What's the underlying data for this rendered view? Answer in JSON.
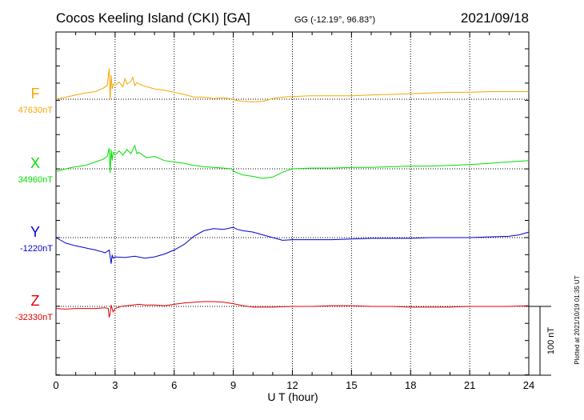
{
  "header": {
    "title": "Cocos Keeling Island (CKI)  [GA]",
    "coords": "GG (-12.19°,  96.83°)",
    "date": "2021/09/18"
  },
  "side_note": "Plotted at 2021/10/19 01:35 UT",
  "scale_bar": {
    "label": "100 nT",
    "value_nT": 100
  },
  "chart_data": {
    "type": "line",
    "xlabel": "U T (hour)",
    "xlim": [
      0,
      24
    ],
    "xticks": [
      0,
      3,
      6,
      9,
      12,
      15,
      18,
      21,
      24
    ],
    "grid": true,
    "series": [
      {
        "name": "F",
        "baseline_label": "47630nT",
        "baseline_nT": 47630,
        "color": "#f5a800",
        "x": [
          0,
          0.5,
          1,
          1.5,
          2,
          2.4,
          2.6,
          2.7,
          2.75,
          2.8,
          2.85,
          2.9,
          3.0,
          3.2,
          3.4,
          3.5,
          3.6,
          3.8,
          3.9,
          4.0,
          4.1,
          4.3,
          4.5,
          5,
          5.5,
          6,
          6.5,
          7,
          7.5,
          8,
          8.5,
          9,
          9.2,
          9.5,
          10,
          10.5,
          11,
          11.5,
          12,
          13,
          14,
          15,
          16,
          17,
          18,
          19,
          20,
          21,
          22,
          23,
          24
        ],
        "y": [
          0,
          3,
          6,
          9,
          11,
          16,
          20,
          45,
          0,
          35,
          15,
          22,
          20,
          25,
          18,
          30,
          22,
          26,
          32,
          20,
          24,
          21,
          19,
          15,
          13,
          10,
          7,
          3,
          3,
          1,
          2,
          0,
          -2,
          -3,
          -4,
          -3,
          1,
          3,
          4,
          5,
          5,
          5,
          6,
          7,
          8,
          9,
          10,
          10,
          11,
          11,
          11
        ]
      },
      {
        "name": "X",
        "baseline_label": "34960nT",
        "baseline_nT": 34960,
        "color": "#00e000",
        "x": [
          0,
          0.5,
          1,
          1.5,
          2,
          2.4,
          2.6,
          2.7,
          2.75,
          2.8,
          2.85,
          2.9,
          3.0,
          3.2,
          3.4,
          3.6,
          3.8,
          4.0,
          4.1,
          4.2,
          4.4,
          4.6,
          5,
          5.5,
          6,
          6.5,
          7,
          7.5,
          8,
          8.5,
          8.9,
          9.0,
          9.2,
          9.5,
          10,
          10.5,
          11,
          11.5,
          12,
          13,
          14,
          15,
          16,
          17,
          18,
          19,
          20,
          21,
          22,
          23,
          24
        ],
        "y": [
          -4,
          0,
          3,
          5,
          10,
          14,
          18,
          30,
          -6,
          28,
          12,
          24,
          20,
          26,
          20,
          28,
          22,
          34,
          22,
          24,
          20,
          16,
          18,
          12,
          10,
          8,
          5,
          3,
          2,
          1,
          0,
          -3,
          -6,
          -9,
          -11,
          -14,
          -12,
          -5,
          0,
          1,
          1,
          2,
          2,
          3,
          4,
          4,
          5,
          6,
          8,
          10,
          12
        ]
      },
      {
        "name": "Y",
        "baseline_label": "-1220nT",
        "baseline_nT": -1220,
        "color": "#0000d0",
        "x": [
          0,
          0.5,
          1,
          1.5,
          2,
          2.5,
          2.7,
          2.8,
          2.85,
          2.9,
          3.0,
          3.5,
          4,
          4.5,
          5,
          5.5,
          6,
          6.5,
          7,
          7.5,
          8,
          8.5,
          9,
          9.2,
          9.5,
          10,
          10.5,
          11,
          11.5,
          12,
          13,
          14,
          15,
          16,
          17,
          18,
          19,
          20,
          21,
          22,
          23,
          23.5,
          24
        ],
        "y": [
          0,
          -8,
          -12,
          -15,
          -18,
          -22,
          -18,
          -38,
          -25,
          -30,
          -28,
          -29,
          -27,
          -30,
          -28,
          -24,
          -18,
          -10,
          2,
          10,
          13,
          12,
          15,
          12,
          10,
          8,
          4,
          0,
          -4,
          -3,
          -3,
          -3,
          -2,
          -1,
          -1,
          -1,
          0,
          0,
          0,
          1,
          2,
          4,
          8
        ]
      },
      {
        "name": "Z",
        "baseline_label": "-32330nT",
        "baseline_nT": -32330,
        "color": "#e00000",
        "x": [
          0,
          0.5,
          1,
          1.5,
          2,
          2.5,
          2.65,
          2.7,
          2.75,
          2.8,
          2.9,
          3.0,
          3.3,
          3.6,
          3.9,
          4.2,
          4.5,
          5,
          5.5,
          6,
          6.5,
          7,
          7.5,
          8,
          8.5,
          9,
          9.5,
          10,
          11,
          12,
          13,
          14,
          15,
          16,
          17,
          18,
          19,
          20,
          21,
          22,
          23,
          24
        ],
        "y": [
          -3,
          -4,
          -3,
          -3,
          -3,
          -2,
          -3,
          -16,
          -10,
          2,
          -8,
          -3,
          0,
          1,
          2,
          3,
          2,
          2,
          1,
          3,
          5,
          6,
          7,
          7,
          6,
          4,
          1,
          -1,
          -1,
          0,
          0,
          1,
          1,
          0,
          0,
          -1,
          -1,
          -1,
          0,
          0,
          0,
          1
        ]
      }
    ]
  }
}
